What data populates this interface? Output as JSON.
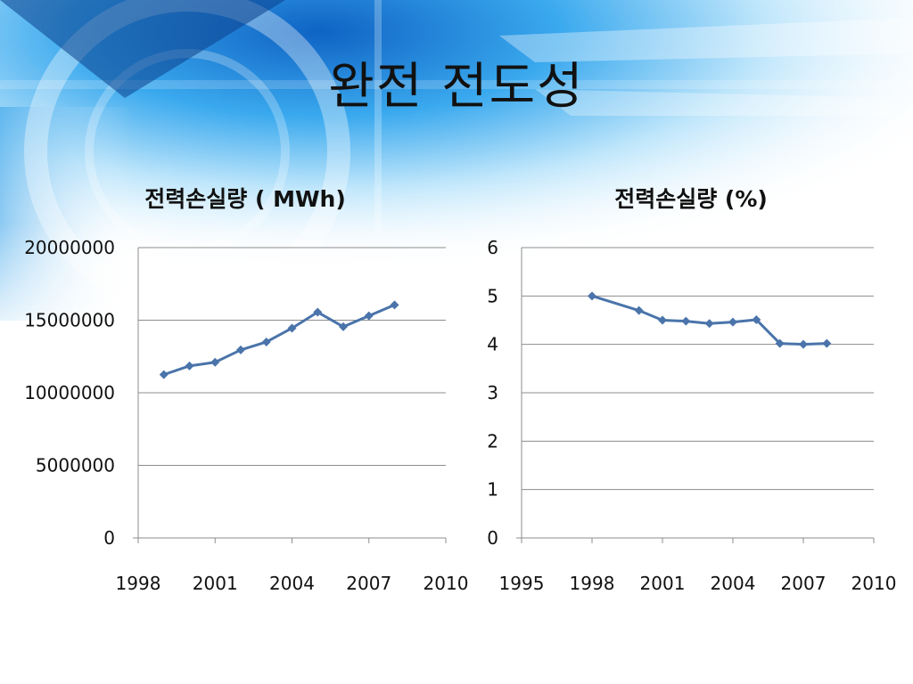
{
  "slide": {
    "title": "완전 전도성"
  },
  "colors": {
    "series": "#4a74aa",
    "grid": "#8c8c8c",
    "background_accent": "#1e7fd8"
  },
  "chart_data": [
    {
      "type": "scatter",
      "mode": "lines+markers",
      "title": "전력손실량 ( MWh)",
      "xlabel": "",
      "ylabel": "",
      "xlim": [
        1998,
        2010
      ],
      "xticks": [
        "1998",
        "2001",
        "2004",
        "2007",
        "2010"
      ],
      "ylim": [
        0,
        20000000
      ],
      "yticks": [
        "0",
        "5000000",
        "10000000",
        "15000000",
        "20000000"
      ],
      "grid": true,
      "legend": "none",
      "series": [
        {
          "x": [
            1999,
            2000,
            2001,
            2002,
            2003,
            2004,
            2005,
            2006,
            2007,
            2008
          ],
          "values": [
            11250000,
            11850000,
            12100000,
            12950000,
            13500000,
            14450000,
            15550000,
            14550000,
            15300000,
            16050000
          ]
        }
      ]
    },
    {
      "type": "scatter",
      "mode": "lines+markers",
      "title": "전력손실량 (%)",
      "xlabel": "",
      "ylabel": "",
      "xlim": [
        1995,
        2010
      ],
      "xticks": [
        "1995",
        "1998",
        "2001",
        "2004",
        "2007",
        "2010"
      ],
      "ylim": [
        0,
        6
      ],
      "yticks": [
        "0",
        "1",
        "2",
        "3",
        "4",
        "5",
        "6"
      ],
      "grid": true,
      "legend": "none",
      "series": [
        {
          "x": [
            1998,
            2000,
            2001,
            2002,
            2003,
            2004,
            2005,
            2006,
            2007,
            2008
          ],
          "values": [
            5.0,
            4.7,
            4.5,
            4.48,
            4.43,
            4.46,
            4.51,
            4.02,
            4.0,
            4.02
          ]
        }
      ]
    }
  ]
}
